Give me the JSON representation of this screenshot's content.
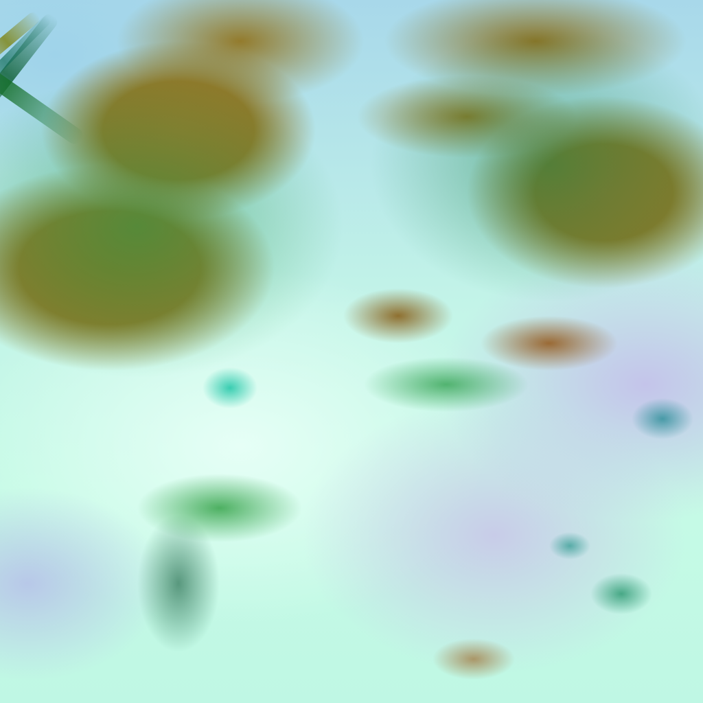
{
  "image": {
    "kind": "false-color satellite imagery",
    "colors": {
      "land": "#8f7a2a",
      "vegetation": "#2a9646",
      "cloud": "#c6fbe6",
      "cirrus": "#c4c4ea",
      "water": "#9fd3ea"
    },
    "text": []
  }
}
